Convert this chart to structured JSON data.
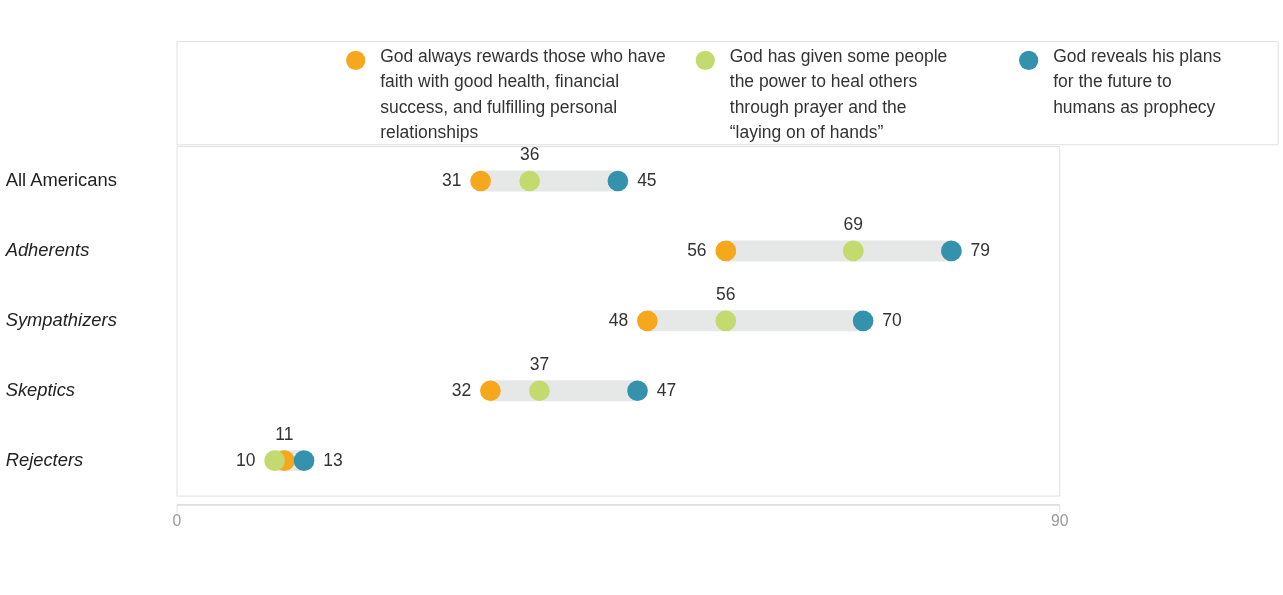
{
  "chart_data": {
    "type": "scatter",
    "orientation": "horizontal",
    "categories": [
      "All Americans",
      "Adherents",
      "Sympathizers",
      "Skeptics",
      "Rejecters"
    ],
    "series": [
      {
        "name": "God always rewards those who have faith with good health, financial success, and fulfilling personal relationships",
        "color": "#f5a81c",
        "values": [
          31,
          56,
          48,
          32,
          11
        ]
      },
      {
        "name": "God has given some people the power to heal others through prayer and the “laying on of hands”",
        "color": "#c3da6e",
        "values": [
          36,
          69,
          56,
          37,
          10
        ]
      },
      {
        "name": "God reveals his plans for the future to humans as prophecy",
        "color": "#3592ad",
        "values": [
          45,
          79,
          70,
          47,
          13
        ]
      }
    ],
    "xlim": [
      0,
      90
    ],
    "xticks": [
      0,
      90
    ],
    "grid": false,
    "legend": "top",
    "marker": "circle",
    "data_labels": true
  }
}
